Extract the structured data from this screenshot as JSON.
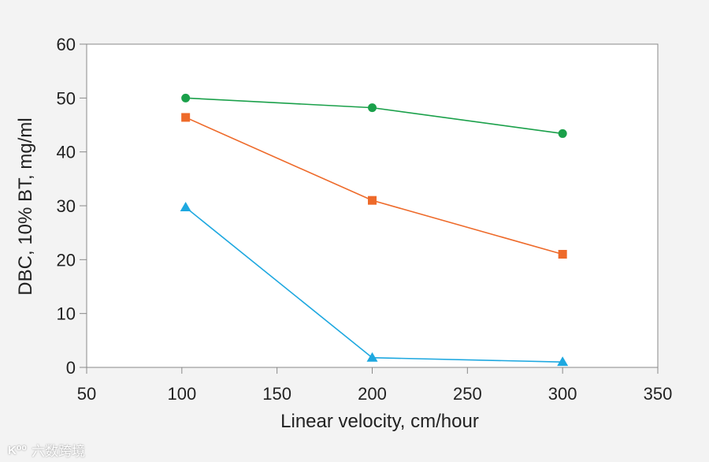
{
  "chart_data": {
    "type": "line",
    "title": "",
    "xlabel": "Linear velocity, cm/hour",
    "ylabel": "DBC, 10% BT, mg/ml",
    "xlim": [
      50,
      350
    ],
    "ylim": [
      0,
      60
    ],
    "xticks": [
      50,
      100,
      150,
      200,
      250,
      300,
      350
    ],
    "yticks": [
      0,
      10,
      20,
      30,
      40,
      50,
      60
    ],
    "grid": false,
    "series": [
      {
        "name": "green",
        "color": "#1aa04a",
        "marker": "circle",
        "x": [
          102,
          200,
          300
        ],
        "y": [
          50,
          48.2,
          43.4
        ]
      },
      {
        "name": "orange",
        "color": "#ee6a2a",
        "marker": "square",
        "x": [
          102,
          200,
          300
        ],
        "y": [
          46.4,
          31,
          21
        ]
      },
      {
        "name": "blue",
        "color": "#1ea8e0",
        "marker": "triangle",
        "x": [
          102,
          200,
          300
        ],
        "y": [
          29.7,
          1.8,
          1
        ]
      }
    ]
  },
  "watermark": {
    "logo": "K⁰⁰",
    "text": "六数跨境"
  }
}
